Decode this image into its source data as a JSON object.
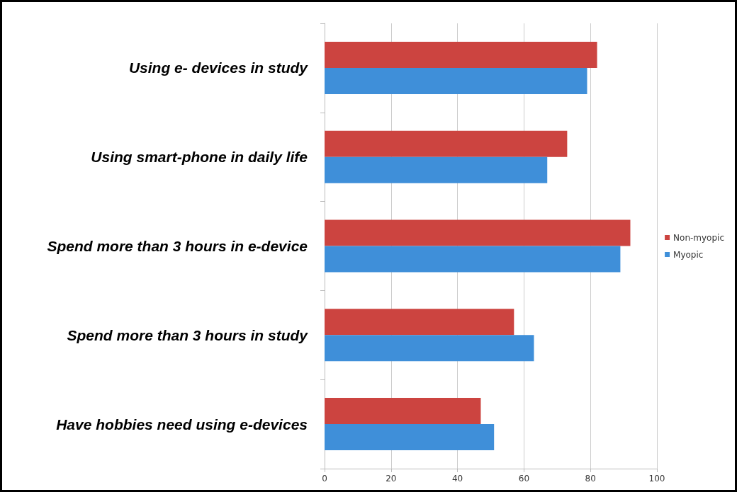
{
  "chart_data": {
    "type": "bar",
    "orientation": "horizontal",
    "categories": [
      "Using e- devices in study",
      "Using smart-phone in daily life",
      "Spend more than 3 hours in e-device",
      "Spend more than 3 hours in study",
      "Have hobbies need using e-devices"
    ],
    "series": [
      {
        "name": "Non-myopic",
        "color": "#cc4440",
        "values": [
          82,
          73,
          92,
          57,
          47
        ]
      },
      {
        "name": "Myopic",
        "color": "#3f8fd9",
        "values": [
          79,
          67,
          89,
          63,
          51
        ]
      }
    ],
    "xlim": [
      0,
      100
    ],
    "xticks": [
      0,
      20,
      40,
      60,
      80,
      100
    ],
    "grid": "x",
    "legend": "right"
  }
}
